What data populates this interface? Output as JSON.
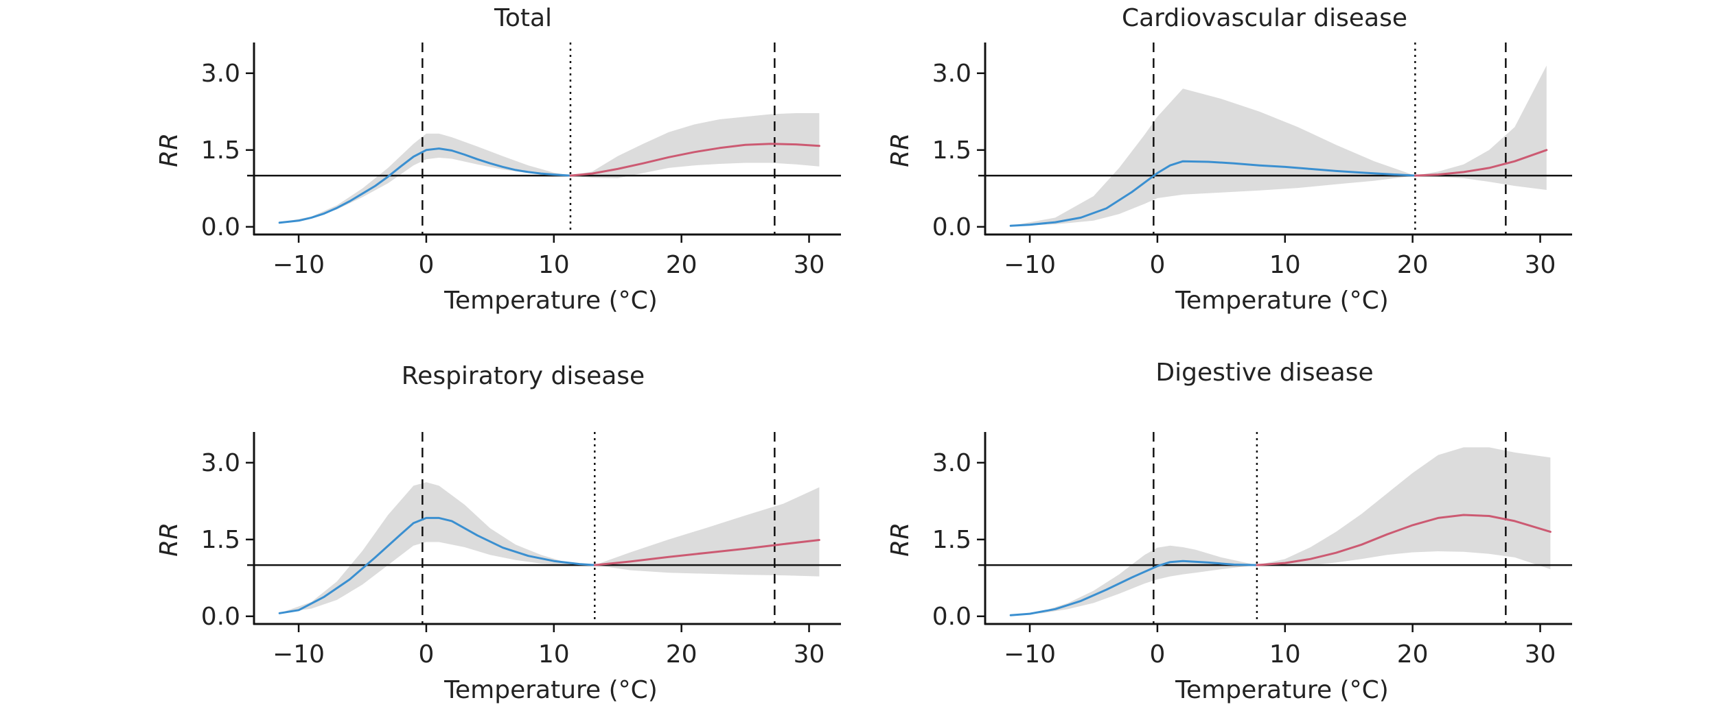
{
  "chart_data": [
    {
      "type": "line",
      "title": "Total",
      "xlabel": "Temperature (°C)",
      "ylabel": "RR",
      "xlim": [
        -13.5,
        32.5
      ],
      "ylim": [
        -0.15,
        3.6
      ],
      "xticks": [
        -10,
        0,
        10,
        20,
        30
      ],
      "xtick_labels": [
        "−10",
        "0",
        "10",
        "20",
        "30"
      ],
      "yticks": [
        0.0,
        1.5,
        3.0
      ],
      "ytick_labels": [
        "0.0",
        "1.5",
        "3.0"
      ],
      "reference_line": 1.0,
      "vlines": [
        {
          "x": -0.3,
          "style": "dashed"
        },
        {
          "x": 11.3,
          "style": "dotted"
        },
        {
          "x": 27.3,
          "style": "dashed"
        }
      ],
      "colors": {
        "cold": "#3a8fd0",
        "heat": "#cc5a72",
        "band": "#dcdcdc"
      },
      "series": [
        {
          "role": "cold",
          "x": [
            -11.5,
            -10,
            -9,
            -8,
            -7,
            -6,
            -5,
            -4,
            -3,
            -2,
            -1,
            0,
            1,
            2,
            3,
            4,
            5,
            6,
            7,
            8,
            9,
            10,
            11.3
          ],
          "y": [
            0.08,
            0.12,
            0.18,
            0.26,
            0.37,
            0.5,
            0.65,
            0.8,
            0.98,
            1.18,
            1.37,
            1.5,
            1.53,
            1.49,
            1.41,
            1.32,
            1.24,
            1.17,
            1.11,
            1.07,
            1.04,
            1.02,
            1.0
          ]
        },
        {
          "role": "heat",
          "x": [
            11.3,
            13,
            15,
            17,
            19,
            21,
            23,
            25,
            27,
            29,
            30.8
          ],
          "y": [
            1.0,
            1.04,
            1.13,
            1.24,
            1.36,
            1.46,
            1.54,
            1.6,
            1.62,
            1.61,
            1.58
          ]
        }
      ],
      "band": {
        "x": [
          -11.5,
          -9,
          -7,
          -5,
          -3,
          -1,
          0,
          1,
          2,
          4,
          6,
          8,
          10,
          11.3,
          13,
          15,
          17,
          19,
          21,
          23,
          25,
          27,
          29,
          30.8
        ],
        "lower": [
          0.08,
          0.17,
          0.34,
          0.58,
          0.85,
          1.2,
          1.32,
          1.35,
          1.33,
          1.22,
          1.12,
          1.05,
          1.01,
          1.0,
          0.96,
          0.95,
          1.05,
          1.15,
          1.2,
          1.23,
          1.25,
          1.25,
          1.22,
          1.18
        ],
        "upper": [
          0.08,
          0.2,
          0.42,
          0.75,
          1.15,
          1.62,
          1.82,
          1.82,
          1.75,
          1.57,
          1.38,
          1.2,
          1.06,
          1.0,
          1.08,
          1.38,
          1.62,
          1.85,
          2.0,
          2.1,
          2.15,
          2.2,
          2.22,
          2.22
        ]
      }
    },
    {
      "type": "line",
      "title": "Cardiovascular disease",
      "xlabel": "Temperature (°C)",
      "ylabel": "RR",
      "xlim": [
        -13.5,
        32.5
      ],
      "ylim": [
        -0.15,
        3.6
      ],
      "xticks": [
        -10,
        0,
        10,
        20,
        30
      ],
      "xtick_labels": [
        "−10",
        "0",
        "10",
        "20",
        "30"
      ],
      "yticks": [
        0.0,
        1.5,
        3.0
      ],
      "ytick_labels": [
        "0.0",
        "1.5",
        "3.0"
      ],
      "reference_line": 1.0,
      "vlines": [
        {
          "x": -0.3,
          "style": "dashed"
        },
        {
          "x": 20.2,
          "style": "dotted"
        },
        {
          "x": 27.3,
          "style": "dashed"
        }
      ],
      "colors": {
        "cold": "#3a8fd0",
        "heat": "#cc5a72",
        "band": "#dcdcdc"
      },
      "series": [
        {
          "role": "cold",
          "x": [
            -11.5,
            -10,
            -8,
            -6,
            -4,
            -2,
            0,
            1,
            2,
            4,
            6,
            8,
            10,
            12,
            14,
            16,
            18,
            20.2
          ],
          "y": [
            0.02,
            0.04,
            0.09,
            0.18,
            0.36,
            0.68,
            1.05,
            1.2,
            1.28,
            1.27,
            1.24,
            1.2,
            1.17,
            1.13,
            1.09,
            1.06,
            1.03,
            1.0
          ]
        },
        {
          "role": "heat",
          "x": [
            20.2,
            22,
            24,
            26,
            28,
            30.5
          ],
          "y": [
            1.0,
            1.02,
            1.07,
            1.15,
            1.28,
            1.5
          ]
        }
      ],
      "band": {
        "x": [
          -11.5,
          -8,
          -5,
          -3,
          -1,
          0,
          2,
          5,
          8,
          11,
          14,
          17,
          20.2,
          22,
          24,
          26,
          28,
          30.5
        ],
        "lower": [
          0.02,
          0.05,
          0.12,
          0.25,
          0.45,
          0.56,
          0.63,
          0.67,
          0.71,
          0.76,
          0.83,
          0.9,
          1.0,
          0.98,
          0.95,
          0.88,
          0.8,
          0.72
        ],
        "upper": [
          0.02,
          0.18,
          0.6,
          1.15,
          1.8,
          2.15,
          2.7,
          2.5,
          2.25,
          1.95,
          1.6,
          1.28,
          1.0,
          1.08,
          1.22,
          1.5,
          1.95,
          3.15
        ]
      }
    },
    {
      "type": "line",
      "title": "Respiratory disease",
      "xlabel": "Temperature (°C)",
      "ylabel": "RR",
      "xlim": [
        -13.5,
        32.5
      ],
      "ylim": [
        -0.15,
        3.6
      ],
      "xticks": [
        -10,
        0,
        10,
        20,
        30
      ],
      "xtick_labels": [
        "−10",
        "0",
        "10",
        "20",
        "30"
      ],
      "yticks": [
        0.0,
        1.5,
        3.0
      ],
      "ytick_labels": [
        "0.0",
        "1.5",
        "3.0"
      ],
      "reference_line": 1.0,
      "vlines": [
        {
          "x": -0.3,
          "style": "dashed"
        },
        {
          "x": 13.2,
          "style": "dotted"
        },
        {
          "x": 27.3,
          "style": "dashed"
        }
      ],
      "colors": {
        "cold": "#3a8fd0",
        "heat": "#cc5a72",
        "band": "#dcdcdc"
      },
      "series": [
        {
          "role": "cold",
          "x": [
            -11.5,
            -10,
            -8,
            -6,
            -4,
            -2,
            -1,
            0,
            1,
            2,
            4,
            6,
            8,
            10,
            12,
            13.2
          ],
          "y": [
            0.06,
            0.12,
            0.38,
            0.72,
            1.15,
            1.6,
            1.82,
            1.92,
            1.92,
            1.86,
            1.58,
            1.34,
            1.18,
            1.08,
            1.02,
            1.0
          ]
        },
        {
          "role": "heat",
          "x": [
            13.2,
            16,
            19,
            22,
            25,
            28,
            30.8
          ],
          "y": [
            1.0,
            1.07,
            1.16,
            1.24,
            1.32,
            1.41,
            1.49
          ]
        }
      ],
      "band": {
        "x": [
          -11.5,
          -9,
          -7,
          -5,
          -3,
          -1,
          0,
          1,
          3,
          5,
          7,
          9,
          11,
          13.2,
          16,
          19,
          22,
          25,
          28,
          30.8
        ],
        "lower": [
          0.06,
          0.15,
          0.32,
          0.62,
          1.0,
          1.38,
          1.45,
          1.45,
          1.35,
          1.2,
          1.1,
          1.03,
          1.0,
          1.0,
          0.9,
          0.85,
          0.83,
          0.81,
          0.8,
          0.78
        ],
        "upper": [
          0.06,
          0.28,
          0.68,
          1.28,
          1.98,
          2.55,
          2.62,
          2.55,
          2.18,
          1.72,
          1.4,
          1.2,
          1.05,
          1.0,
          1.25,
          1.5,
          1.73,
          1.97,
          2.2,
          2.52
        ]
      }
    },
    {
      "type": "line",
      "title": "Digestive disease",
      "xlabel": "Temperature (°C)",
      "ylabel": "RR",
      "xlim": [
        -13.5,
        32.5
      ],
      "ylim": [
        -0.15,
        3.6
      ],
      "xticks": [
        -10,
        0,
        10,
        20,
        30
      ],
      "xtick_labels": [
        "−10",
        "0",
        "10",
        "20",
        "30"
      ],
      "yticks": [
        0.0,
        1.5,
        3.0
      ],
      "ytick_labels": [
        "0.0",
        "1.5",
        "3.0"
      ],
      "reference_line": 1.0,
      "vlines": [
        {
          "x": -0.3,
          "style": "dashed"
        },
        {
          "x": 7.8,
          "style": "dotted"
        },
        {
          "x": 27.3,
          "style": "dashed"
        }
      ],
      "colors": {
        "cold": "#3a8fd0",
        "heat": "#cc5a72",
        "band": "#dcdcdc"
      },
      "series": [
        {
          "role": "cold",
          "x": [
            -11.5,
            -10,
            -8,
            -6,
            -4,
            -2,
            0,
            1,
            2,
            4,
            6,
            7.8
          ],
          "y": [
            0.02,
            0.05,
            0.14,
            0.3,
            0.52,
            0.76,
            0.98,
            1.06,
            1.08,
            1.05,
            1.01,
            1.0
          ]
        },
        {
          "role": "heat",
          "x": [
            7.8,
            10,
            12,
            14,
            16,
            18,
            20,
            22,
            24,
            26,
            28,
            30.8
          ],
          "y": [
            1.0,
            1.04,
            1.12,
            1.24,
            1.4,
            1.6,
            1.78,
            1.92,
            1.98,
            1.96,
            1.86,
            1.65
          ]
        }
      ],
      "band": {
        "x": [
          -11.5,
          -9,
          -7,
          -5,
          -3,
          -1,
          0,
          1,
          2,
          3,
          5,
          7.8,
          10,
          12,
          14,
          16,
          18,
          20,
          22,
          24,
          26,
          28,
          30.8
        ],
        "lower": [
          0.02,
          0.06,
          0.14,
          0.26,
          0.44,
          0.64,
          0.72,
          0.78,
          0.82,
          0.85,
          0.92,
          1.0,
          0.98,
          1.0,
          1.05,
          1.12,
          1.2,
          1.25,
          1.27,
          1.26,
          1.22,
          1.15,
          0.92
        ],
        "upper": [
          0.02,
          0.1,
          0.26,
          0.5,
          0.82,
          1.2,
          1.34,
          1.38,
          1.35,
          1.3,
          1.15,
          1.0,
          1.12,
          1.35,
          1.65,
          2.0,
          2.4,
          2.8,
          3.15,
          3.3,
          3.3,
          3.2,
          3.1
        ]
      }
    }
  ]
}
